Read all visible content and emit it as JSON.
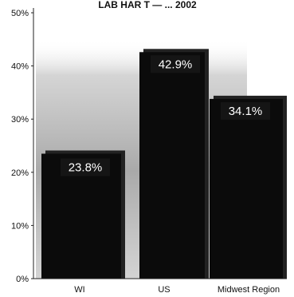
{
  "header_text": "LAB HAR T — ... 2002",
  "chart_data": {
    "type": "bar",
    "title": "",
    "xlabel": "",
    "ylabel": "",
    "categories": [
      "WI",
      "US",
      "Midwest Region"
    ],
    "values": [
      23.8,
      42.9,
      34.1
    ],
    "data_labels": [
      "23.8%",
      "42.9%",
      "34.1%"
    ],
    "ylim": [
      0,
      50
    ],
    "yticks": [
      0,
      10,
      20,
      30,
      40,
      50
    ],
    "ytick_labels": [
      "0%",
      "10%",
      "20%",
      "30%",
      "40%",
      "50%"
    ],
    "grid": false,
    "legend": "none",
    "colors": {
      "bar": "#0b0b0b",
      "bar_shadow": "#222222",
      "label_box": "#151515",
      "backdrop": "#b5b5b5",
      "text": "#ffffff"
    }
  }
}
